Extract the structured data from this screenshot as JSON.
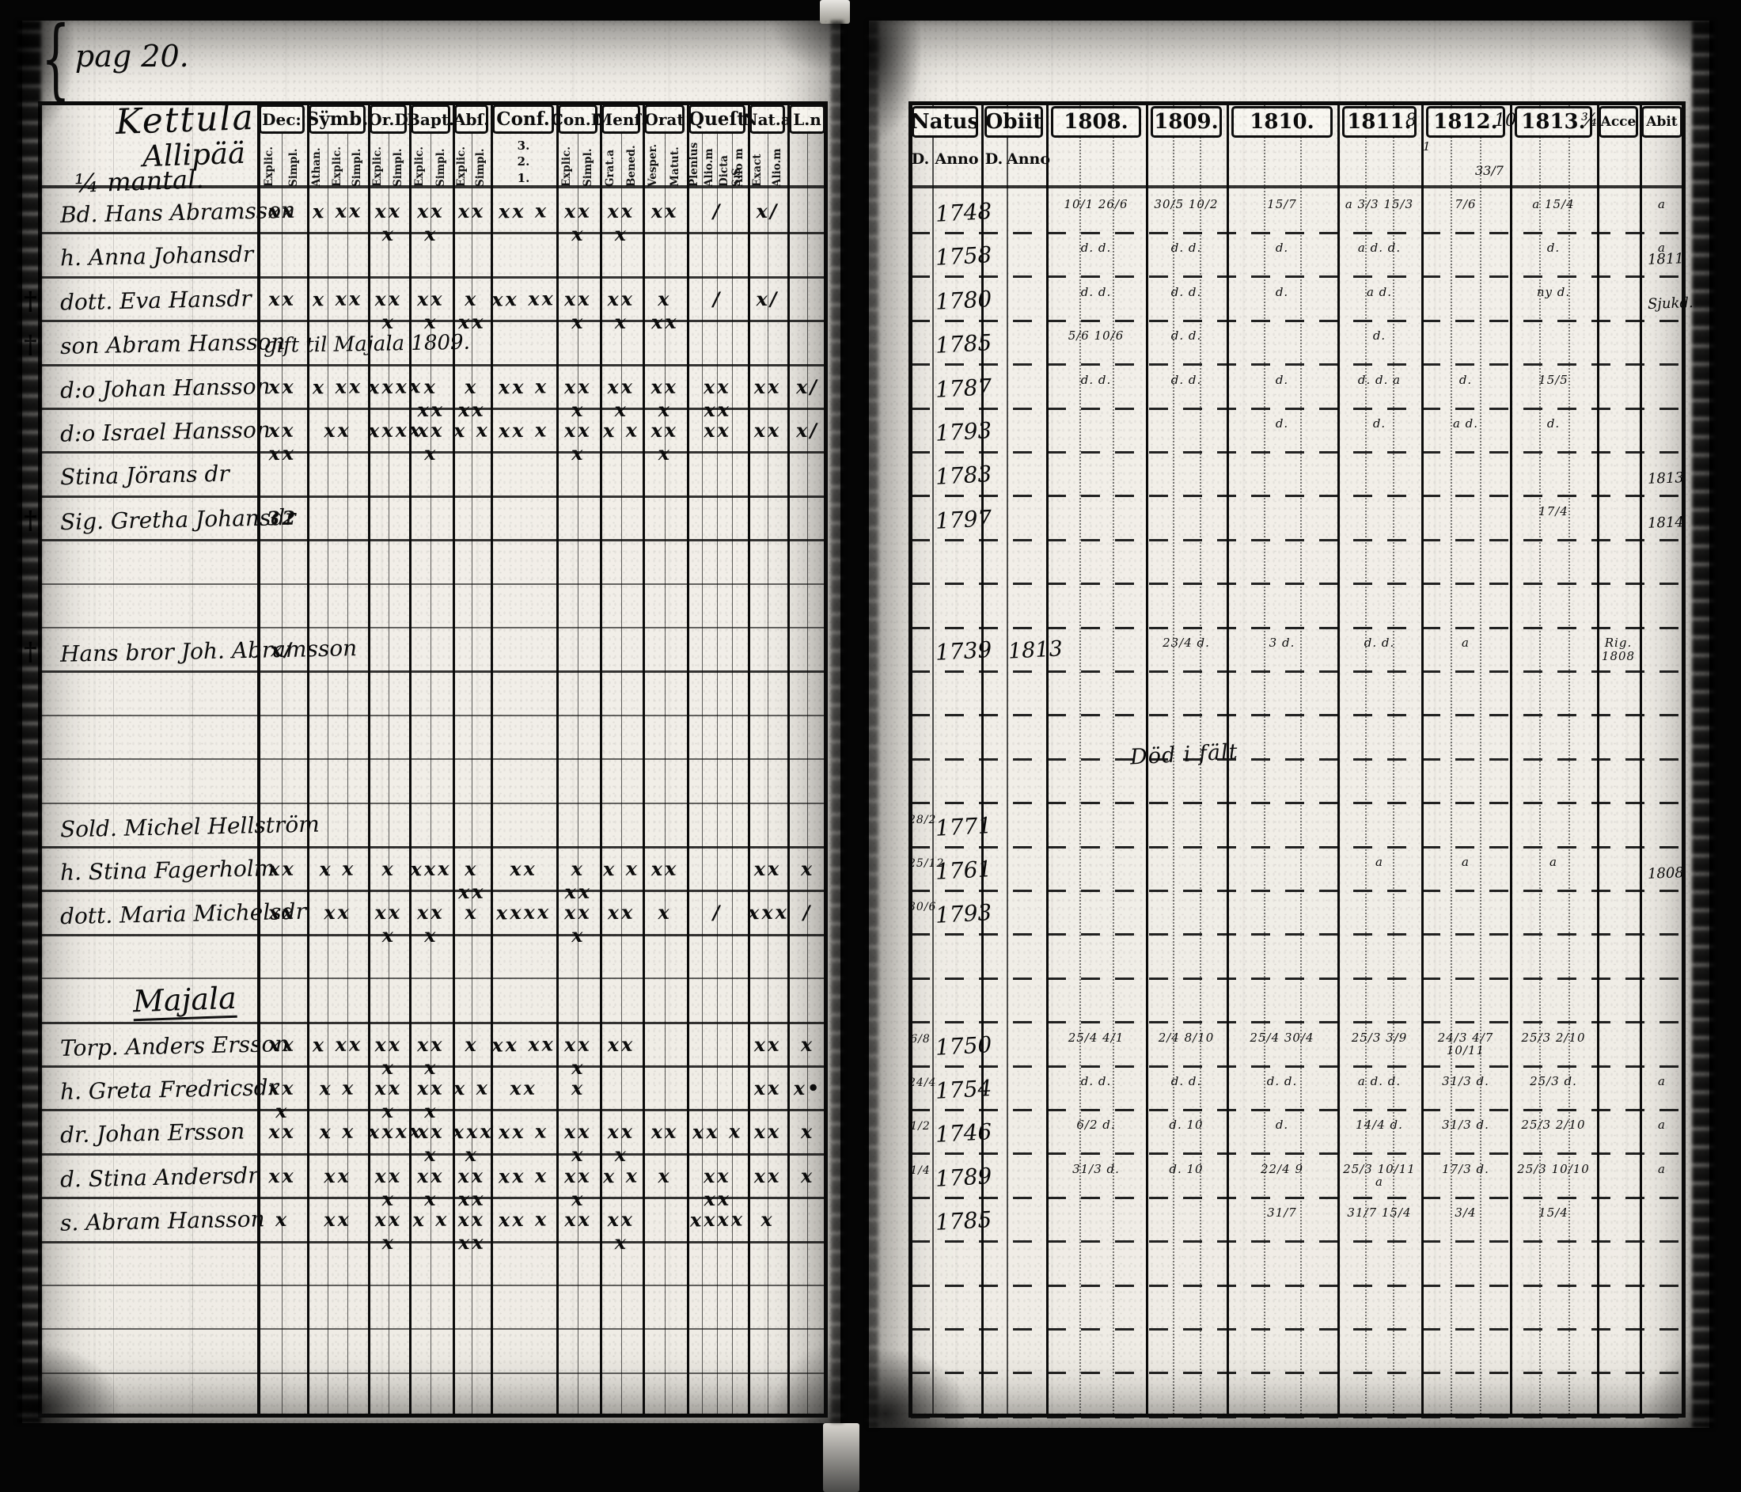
{
  "page_label": "pag 20.",
  "brace": "{",
  "left": {
    "title_lines": [
      "Kettula",
      "Allipää",
      "¼ mantal."
    ],
    "columns": [
      {
        "key": "dec",
        "label": "Dec:",
        "subs": [
          "Explic.",
          "Simpl."
        ]
      },
      {
        "key": "symb",
        "label": "Sÿmb.",
        "subs": [
          "Athan.",
          "Explic.",
          "Simpl."
        ]
      },
      {
        "key": "ord",
        "label": "Or.D",
        "subs": [
          "Explic.",
          "Simpl."
        ]
      },
      {
        "key": "bapt",
        "label": "Bapt.",
        "subs": [
          "Explic.",
          "Simpl."
        ]
      },
      {
        "key": "abs",
        "label": "Abſ.",
        "subs": [
          "Explic.",
          "Simpl."
        ]
      },
      {
        "key": "conf",
        "label": "Conf.",
        "subs": [
          "3.",
          "2.",
          "1."
        ]
      },
      {
        "key": "cond",
        "label": "Con.D",
        "subs": [
          "Explic.",
          "Simpl."
        ]
      },
      {
        "key": "mens",
        "label": "Menſ.",
        "subs": [
          "Grat.a",
          "Bened."
        ]
      },
      {
        "key": "orat",
        "label": "Orat",
        "subs": [
          "Vesper.",
          "Matut."
        ]
      },
      {
        "key": "quest",
        "label": "Queſt",
        "subs": [
          "Plenius",
          "Alio.m",
          "Dicta S.S",
          "Alio m"
        ]
      },
      {
        "key": "nata",
        "label": "Nat.a",
        "subs": [
          "Exact",
          "Alio.m"
        ]
      },
      {
        "key": "ln",
        "label": "L.n",
        "subs": []
      }
    ],
    "rows": [
      {
        "name": "Bd. Hans Abramsson",
        "marks": {
          "dec": "xx",
          "symb": "x xx",
          "ord": "xx x",
          "bapt": "xx x",
          "abs": "xx",
          "conf": "xx x",
          "cond": "xx x",
          "mens": "xx x",
          "orat": "xx",
          "quest": "/",
          "nata": "x/"
        }
      },
      {
        "name": "h. Anna Johansdr"
      },
      {
        "name": "dott. Eva Hansdr",
        "cross": true,
        "marks": {
          "dec": "xx",
          "symb": "x xx",
          "ord": "xx x",
          "bapt": "xx x",
          "abs": "x xx",
          "conf": "xx xx",
          "cond": "xx x",
          "mens": "xx x",
          "orat": "x xx",
          "quest": "/",
          "nata": "x/"
        }
      },
      {
        "name": "son Abram Hansson",
        "cross": true,
        "note": "gift til Majala 1809."
      },
      {
        "name": "d:o Johan Hansson",
        "marks": {
          "dec": "xx",
          "symb": "x xx",
          "ord": "xxxx",
          "bapt": "x xx",
          "abs": "x xx",
          "conf": "xx x",
          "cond": "xx x",
          "mens": "xx x",
          "orat": "xx x",
          "quest": "xx xx",
          "nata": "xx",
          "ln": "x/"
        }
      },
      {
        "name": "d:o Israel Hansson",
        "marks": {
          "dec": "xx xx",
          "symb": "xx",
          "ord": "xxxx",
          "bapt": "xx x",
          "abs": "x x",
          "conf": "xx x",
          "cond": "xx x",
          "mens": "x x",
          "orat": "xx x",
          "quest": "xx",
          "nata": "xx",
          "ln": "x/"
        }
      },
      {
        "name": "Stina Jörans dr"
      },
      {
        "name": "Sig. Gretha Johansdr",
        "cross": true,
        "marks": {
          "dec": "32"
        }
      },
      {},
      {},
      {
        "name": "Hans bror Joh. Abramsson",
        "cross": true,
        "marks": {
          "dec": "x/"
        }
      },
      {},
      {},
      {},
      {
        "name": "Sold. Michel Hellström"
      },
      {
        "name": "h. Stina Fagerholm",
        "marks": {
          "dec": "xx",
          "symb": "x x",
          "ord": "x",
          "bapt": "xxx",
          "abs": "x xx",
          "conf": "xx",
          "cond": "x xx",
          "mens": "x x",
          "orat": "xx",
          "nata": "xx",
          "ln": "x"
        }
      },
      {
        "name": "dott. Maria Michelsdr",
        "marks": {
          "dec": "xx",
          "symb": "xx",
          "ord": "xx x",
          "bapt": "xx x",
          "abs": "x",
          "conf": "xxxx",
          "cond": "xx x",
          "mens": "xx",
          "orat": "x",
          "quest": "/",
          "nata": "xxx",
          "ln": "/"
        }
      },
      {},
      {
        "section": "Majala"
      },
      {
        "name": "Torp. Anders Ersson",
        "marks": {
          "dec": "xx",
          "symb": "x xx",
          "ord": "xx x",
          "bapt": "xx x",
          "abs": "x",
          "conf": "xx xx",
          "cond": "xx x",
          "mens": "xx",
          "nata": "xx",
          "ln": "x"
        }
      },
      {
        "name": "h. Greta Fredricsdr",
        "marks": {
          "dec": "xx x",
          "symb": "x x",
          "ord": "xx x",
          "bapt": "xx x",
          "abs": "x x",
          "conf": "xx",
          "cond": "x",
          "nata": "xx",
          "ln": "x•"
        }
      },
      {
        "name": "dr. Johan Ersson",
        "marks": {
          "dec": "xx",
          "symb": "x x",
          "ord": "xxxx",
          "bapt": "xx x",
          "abs": "xxx x",
          "conf": "xx x",
          "cond": "xx x",
          "mens": "xx x",
          "orat": "xx",
          "quest": "xx x",
          "nata": "xx",
          "ln": "x"
        }
      },
      {
        "name": "d. Stina Andersdr",
        "marks": {
          "dec": "xx",
          "symb": "xx",
          "ord": "xx x",
          "bapt": "xx x",
          "abs": "xx xx",
          "conf": "xx x",
          "cond": "xx x",
          "mens": "x x",
          "orat": "x",
          "quest": "xx xx",
          "nata": "xx",
          "ln": "x"
        }
      },
      {
        "name": "s. Abram Hansson",
        "marks": {
          "dec": "x",
          "symb": "xx",
          "ord": "xx x",
          "bapt": "x x",
          "abs": "xx xx",
          "conf": "xx x",
          "cond": "xx",
          "mens": "xx x",
          "quest": "xxxx",
          "nata": "x"
        }
      },
      {},
      {},
      {},
      {}
    ]
  },
  "right": {
    "columns": [
      {
        "key": "natus",
        "label": "Natus"
      },
      {
        "key": "obiit",
        "label": "Obiit"
      },
      {
        "key": "y1808",
        "label": "1808."
      },
      {
        "key": "y1809",
        "label": "1809."
      },
      {
        "key": "y1810",
        "label": "1810."
      },
      {
        "key": "y1811",
        "label": "1811.",
        "hand": "8"
      },
      {
        "key": "y1812",
        "label": "1812.",
        "hand": "10"
      },
      {
        "key": "y1813",
        "label": "1813.",
        "hand": "¾"
      },
      {
        "key": "acce",
        "label": "Acce"
      },
      {
        "key": "abit",
        "label": "Abit"
      }
    ],
    "subheaders": [
      "D.",
      "Anno",
      "D.",
      "Anno"
    ],
    "header_note_1811": "33/7",
    "header_note_1812": "1",
    "field_note": "Död i fält",
    "rows": [
      {
        "natus": "1748",
        "y1808": "10/1 26/6",
        "y1809": "30/5 10/2",
        "y1810": "15/7",
        "y1811": "a 3/3 15/3",
        "y1812": "7/6",
        "y1813": "a 15/4",
        "abit": "a"
      },
      {
        "natus": "1758",
        "y1808": "d. d.",
        "y1809": "d. d.",
        "y1810": "d.",
        "y1811": "a d. d.",
        "y1813": "d.",
        "abit": "a",
        "margin": "1811"
      },
      {
        "natus": "1780",
        "y1808": "d. d.",
        "y1809": "d. d.",
        "y1810": "d.",
        "y1811": "a d.",
        "y1813": "ny d.",
        "margin": "Sjukd."
      },
      {
        "natus": "1785",
        "y1808": "5/6 10/6",
        "y1809": "d. d.",
        "y1811": "d."
      },
      {
        "natus": "1787",
        "y1808": "d. d.",
        "y1809": "d. d.",
        "y1810": "d.",
        "y1811": "d. d. a",
        "y1812": "d.",
        "y1813": "15/5"
      },
      {
        "natus": "1793",
        "y1810": "d.",
        "y1811": "d.",
        "y1812": "a d.",
        "y1813": "d."
      },
      {
        "natus": "1783",
        "margin": "1813"
      },
      {
        "natus": "1797",
        "y1813": "17/4",
        "margin": "1814"
      },
      {},
      {},
      {
        "natus": "1739",
        "obiit": "1813",
        "y1809": "23/4 d.",
        "y1810": "3 d.",
        "y1811": "d. d.",
        "y1812": "a",
        "acce": "Rig. 1808"
      },
      {},
      {},
      {},
      {
        "natus_d": "28/2",
        "natus": "1771"
      },
      {
        "natus_d": "25/12",
        "natus": "1761",
        "y1811": "a",
        "y1812": "a",
        "y1813": "a",
        "margin": "1808"
      },
      {
        "natus_d": "30/6",
        "natus": "1793"
      },
      {},
      {},
      {
        "natus_d": "6/8",
        "natus": "1750",
        "y1808": "25/4 4/1",
        "y1809": "2/4 8/10",
        "y1810": "25/4 30/4",
        "y1811": "25/3 3/9",
        "y1812": "24/3 4/7 10/11",
        "y1813": "25/3 2/10"
      },
      {
        "natus_d": "24/4",
        "natus": "1754",
        "y1808": "d. d.",
        "y1809": "d. d.",
        "y1810": "d. d.",
        "y1811": "a d. d.",
        "y1812": "31/3 d.",
        "y1813": "25/3 d.",
        "abit": "a"
      },
      {
        "natus_d": "1/2",
        "natus": "1746",
        "y1808": "6/2 d.",
        "y1809": "d. 10",
        "y1810": "d.",
        "y1811": "14/4 d.",
        "y1812": "31/3 d.",
        "y1813": "25/3 2/10",
        "abit": "a"
      },
      {
        "natus_d": "1/4",
        "natus": "1789",
        "y1808": "31/3 d.",
        "y1809": "d. 10",
        "y1810": "22/4 9",
        "y1811": "25/3 10/11 a",
        "y1812": "17/3 d.",
        "y1813": "25/3 10/10",
        "abit": "a"
      },
      {
        "natus": "1785",
        "y1810": "31/7",
        "y1811": "31/7 15/4",
        "y1812": "3/4",
        "y1813": "15/4"
      },
      {},
      {},
      {},
      {}
    ]
  }
}
